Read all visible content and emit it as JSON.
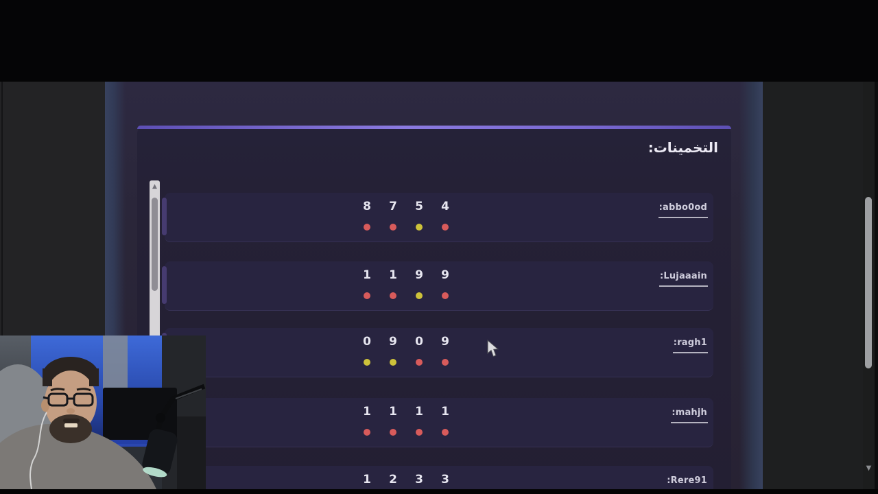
{
  "page": {
    "title": "التخمينات:",
    "guesses": [
      {
        "name": ":abbo0od",
        "digits": [
          "8",
          "7",
          "5",
          "4"
        ],
        "dots": [
          "red",
          "red",
          "yellow",
          "red"
        ]
      },
      {
        "name": ":Lujaaain",
        "digits": [
          "1",
          "1",
          "9",
          "9"
        ],
        "dots": [
          "red",
          "red",
          "yellow",
          "red"
        ]
      },
      {
        "name": ":ragh1",
        "digits": [
          "0",
          "9",
          "0",
          "9"
        ],
        "dots": [
          "yellow",
          "yellow",
          "red",
          "red"
        ]
      },
      {
        "name": ":mahjh",
        "digits": [
          "1",
          "1",
          "1",
          "1"
        ],
        "dots": [
          "red",
          "red",
          "red",
          "red"
        ]
      },
      {
        "name": ":Rere91",
        "digits": [
          "1",
          "2",
          "3",
          "3"
        ],
        "dots": []
      }
    ],
    "colors": {
      "dot_red": "#d85b5b",
      "dot_yellow": "#cdc23a",
      "accent_purple": "#8b7ae0",
      "row_bg": "#282440"
    }
  },
  "scrollbars": {
    "inner_up_icon": "▲",
    "browser_down_icon": "▼"
  }
}
